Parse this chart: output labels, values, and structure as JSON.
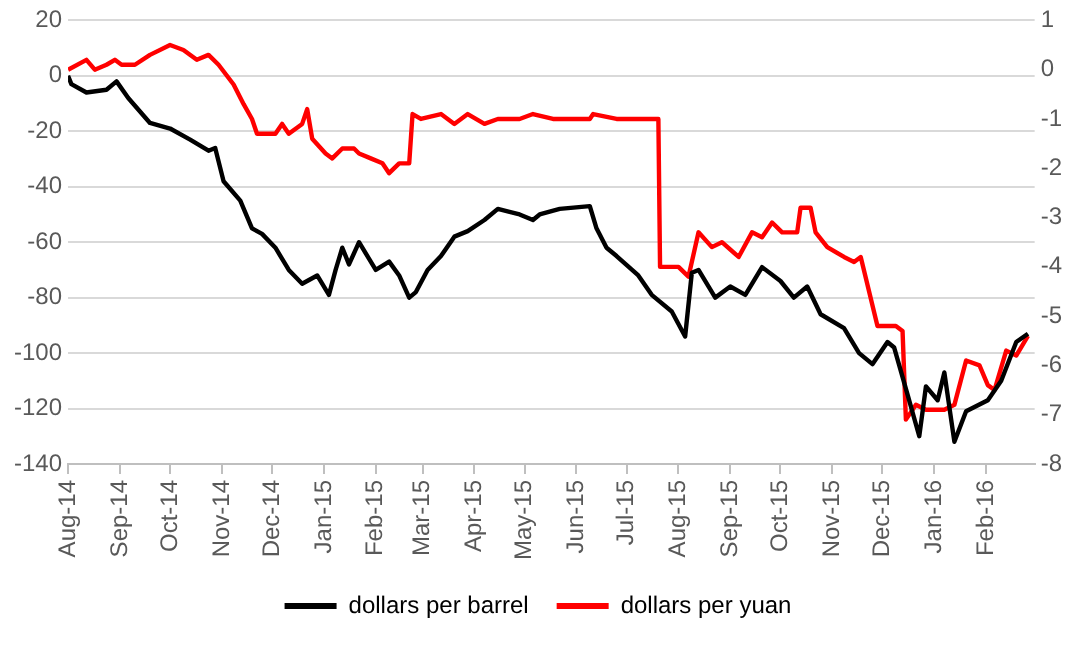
{
  "chart_data": {
    "type": "line",
    "xlim": [
      "2014-08-01",
      "2016-03-01"
    ],
    "xticks": [
      {
        "value": "2014-08-01",
        "label": "Aug-14"
      },
      {
        "value": "2014-09-01",
        "label": "Sep-14"
      },
      {
        "value": "2014-10-01",
        "label": "Oct-14"
      },
      {
        "value": "2014-11-01",
        "label": "Nov-14"
      },
      {
        "value": "2014-12-01",
        "label": "Dec-14"
      },
      {
        "value": "2015-01-01",
        "label": "Jan-15"
      },
      {
        "value": "2015-02-01",
        "label": "Feb-15"
      },
      {
        "value": "2015-03-01",
        "label": "Mar-15"
      },
      {
        "value": "2015-04-01",
        "label": "Apr-15"
      },
      {
        "value": "2015-05-01",
        "label": "May-15"
      },
      {
        "value": "2015-06-01",
        "label": "Jun-15"
      },
      {
        "value": "2015-07-01",
        "label": "Jul-15"
      },
      {
        "value": "2015-08-01",
        "label": "Aug-15"
      },
      {
        "value": "2015-09-01",
        "label": "Sep-15"
      },
      {
        "value": "2015-10-01",
        "label": "Oct-15"
      },
      {
        "value": "2015-11-01",
        "label": "Nov-15"
      },
      {
        "value": "2015-12-01",
        "label": "Dec-15"
      },
      {
        "value": "2016-01-01",
        "label": "Jan-16"
      },
      {
        "value": "2016-02-01",
        "label": "Feb-16"
      }
    ],
    "ylim": [
      -140,
      20
    ],
    "yticks": [
      -140,
      -120,
      -100,
      -80,
      -60,
      -40,
      -20,
      0,
      20
    ],
    "y2lim": [
      -8,
      1
    ],
    "y2ticks": [
      -8,
      -7,
      -6,
      -5,
      -4,
      -3,
      -2,
      -1,
      0,
      1
    ],
    "grid": "y",
    "legend": "bottom",
    "marker": "none",
    "line_style": "solid",
    "series": [
      {
        "name": "dollars per barrel",
        "color": "#000000",
        "x": [
          "2014-08-01",
          "2014-08-03",
          "2014-08-12",
          "2014-08-24",
          "2014-08-30",
          "2014-09-06",
          "2014-09-19",
          "2014-10-01",
          "2014-10-13",
          "2014-10-24",
          "2014-10-28",
          "2014-11-02",
          "2014-11-12",
          "2014-11-19",
          "2014-11-25",
          "2014-12-03",
          "2014-12-11",
          "2014-12-19",
          "2014-12-28",
          "2015-01-04",
          "2015-01-08",
          "2015-01-12",
          "2015-01-16",
          "2015-01-22",
          "2015-02-01",
          "2015-02-09",
          "2015-02-15",
          "2015-02-21",
          "2015-02-25",
          "2015-03-04",
          "2015-03-12",
          "2015-03-20",
          "2015-03-28",
          "2015-04-07",
          "2015-04-15",
          "2015-04-28",
          "2015-05-06",
          "2015-05-10",
          "2015-05-22",
          "2015-06-09",
          "2015-06-13",
          "2015-06-19",
          "2015-06-25",
          "2015-07-08",
          "2015-07-16",
          "2015-07-28",
          "2015-08-05",
          "2015-08-09",
          "2015-08-13",
          "2015-08-23",
          "2015-09-01",
          "2015-09-10",
          "2015-09-20",
          "2015-10-01",
          "2015-10-09",
          "2015-10-17",
          "2015-10-25",
          "2015-11-08",
          "2015-11-17",
          "2015-11-25",
          "2015-12-04",
          "2015-12-08",
          "2015-12-16",
          "2015-12-23",
          "2015-12-27",
          "2016-01-03",
          "2016-01-07",
          "2016-01-13",
          "2016-01-20",
          "2016-02-02",
          "2016-02-10",
          "2016-02-19",
          "2016-02-26"
        ],
        "values": [
          0,
          -3,
          -6,
          -5,
          -2,
          -8,
          -17,
          -19,
          -23,
          -27,
          -26,
          -38,
          -45,
          -55,
          -57,
          -62,
          -70,
          -75,
          -72,
          -79,
          -70,
          -62,
          -68,
          -60,
          -70,
          -67,
          -72,
          -80,
          -78,
          -70,
          -65,
          -58,
          -56,
          -52,
          -48,
          -50,
          -52,
          -50,
          -48,
          -47,
          -55,
          -62,
          -65,
          -72,
          -79,
          -85,
          -94,
          -71,
          -70,
          -80,
          -76,
          -79,
          -69,
          -74,
          -80,
          -76,
          -86,
          -91,
          -100,
          -104,
          -96,
          -98,
          -115,
          -130,
          -112,
          -117,
          -107,
          -132,
          -121,
          -117,
          -110,
          -96,
          -93
        ]
      },
      {
        "name": "dollars per yuan",
        "color": "#ff0000",
        "axis": "y2",
        "x": [
          "2014-08-01",
          "2014-08-12",
          "2014-08-17",
          "2014-08-24",
          "2014-08-29",
          "2014-09-02",
          "2014-09-10",
          "2014-09-19",
          "2014-10-01",
          "2014-10-09",
          "2014-10-17",
          "2014-10-24",
          "2014-10-30",
          "2014-11-08",
          "2014-11-14",
          "2014-11-19",
          "2014-11-22",
          "2014-11-27",
          "2014-12-03",
          "2014-12-07",
          "2014-12-11",
          "2014-12-19",
          "2014-12-22",
          "2014-12-25",
          "2015-01-02",
          "2015-01-06",
          "2015-01-12",
          "2015-01-19",
          "2015-01-22",
          "2015-01-29",
          "2015-02-05",
          "2015-02-09",
          "2015-02-15",
          "2015-02-21",
          "2015-02-23",
          "2015-02-28",
          "2015-03-12",
          "2015-03-20",
          "2015-03-28",
          "2015-04-07",
          "2015-04-15",
          "2015-04-28",
          "2015-05-06",
          "2015-05-18",
          "2015-06-09",
          "2015-06-11",
          "2015-06-25",
          "2015-07-20",
          "2015-07-21",
          "2015-08-01",
          "2015-08-07",
          "2015-08-13",
          "2015-08-21",
          "2015-08-27",
          "2015-09-06",
          "2015-09-14",
          "2015-09-20",
          "2015-09-26",
          "2015-10-02",
          "2015-10-11",
          "2015-10-13",
          "2015-10-19",
          "2015-10-22",
          "2015-10-29",
          "2015-11-08",
          "2015-11-14",
          "2015-11-18",
          "2015-11-28",
          "2015-12-09",
          "2015-12-13",
          "2015-12-15",
          "2015-12-21",
          "2015-12-27",
          "2016-01-07",
          "2016-01-13",
          "2016-01-20",
          "2016-01-28",
          "2016-02-02",
          "2016-02-06",
          "2016-02-13",
          "2016-02-19",
          "2016-02-26"
        ],
        "values": [
          0,
          0.2,
          0,
          0.1,
          0.2,
          0.1,
          0.1,
          0.3,
          0.5,
          0.4,
          0.2,
          0.3,
          0.1,
          -0.3,
          -0.7,
          -1,
          -1.3,
          -1.3,
          -1.3,
          -1.1,
          -1.3,
          -1.1,
          -0.8,
          -1.4,
          -1.7,
          -1.8,
          -1.6,
          -1.6,
          -1.7,
          -1.8,
          -1.9,
          -2.1,
          -1.9,
          -1.9,
          -0.9,
          -1,
          -0.9,
          -1.1,
          -0.9,
          -1.1,
          -1,
          -1,
          -0.9,
          -1,
          -1,
          -0.9,
          -1,
          -1,
          -4,
          -4,
          -4.2,
          -3.3,
          -3.6,
          -3.5,
          -3.8,
          -3.3,
          -3.4,
          -3.1,
          -3.3,
          -3.3,
          -2.8,
          -2.8,
          -3.3,
          -3.6,
          -3.8,
          -3.9,
          -3.8,
          -5.2,
          -5.2,
          -5.3,
          -7.1,
          -6.8,
          -6.9,
          -6.9,
          -6.8,
          -5.9,
          -6,
          -6.4,
          -6.5,
          -5.7,
          -5.8,
          -5.4
        ]
      }
    ]
  }
}
